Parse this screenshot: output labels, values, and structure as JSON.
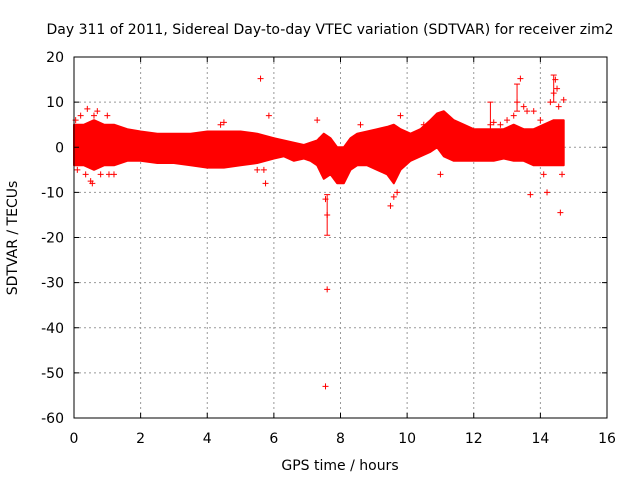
{
  "chart_data": {
    "type": "scatter",
    "title": "Day 311 of 2011, Sidereal Day-to-day VTEC variation (SDTVAR) for receiver zim2",
    "xlabel": "GPS time / hours",
    "ylabel": "SDTVAR / TECUs",
    "xlim": [
      0,
      16
    ],
    "ylim": [
      -60,
      20
    ],
    "xticks": [
      "0",
      "2",
      "4",
      "6",
      "8",
      "10",
      "12",
      "14",
      "16"
    ],
    "yticks": [
      "20",
      "10",
      "0",
      "-10",
      "-20",
      "-30",
      "-40",
      "-50",
      "-60"
    ],
    "grid": true,
    "series_color": "#ff0000",
    "band": {
      "x": [
        0.0,
        0.3,
        0.6,
        0.9,
        1.2,
        1.6,
        2.0,
        2.5,
        3.0,
        3.5,
        4.0,
        4.5,
        5.0,
        5.5,
        6.0,
        6.3,
        6.6,
        6.9,
        7.1,
        7.3,
        7.5,
        7.7,
        7.9,
        8.1,
        8.3,
        8.5,
        8.8,
        9.1,
        9.4,
        9.6,
        9.8,
        10.1,
        10.4,
        10.7,
        10.9,
        11.1,
        11.4,
        11.7,
        12.0,
        12.3,
        12.6,
        12.9,
        13.2,
        13.5,
        13.8,
        14.1,
        14.4,
        14.7
      ],
      "upper": [
        5,
        5,
        6,
        5,
        5,
        4,
        3.5,
        3,
        3,
        3,
        3.5,
        3.5,
        3.5,
        3,
        2,
        1.5,
        1,
        0.5,
        1,
        1.5,
        3,
        2,
        0,
        0,
        2,
        3,
        3.5,
        4,
        4.5,
        5,
        4,
        3,
        4,
        6,
        7.5,
        8,
        6,
        5,
        4,
        4,
        4,
        4,
        5,
        4,
        4,
        5,
        6,
        6
      ],
      "lower": [
        -4,
        -4,
        -5,
        -4,
        -4,
        -3,
        -3,
        -3.5,
        -3.5,
        -4,
        -4.5,
        -4.5,
        -4,
        -3.5,
        -2.5,
        -2,
        -3,
        -2.5,
        -3,
        -4,
        -7,
        -6,
        -8,
        -8,
        -5,
        -4,
        -4,
        -5,
        -6,
        -8,
        -5,
        -3,
        -2,
        -1,
        0,
        -2,
        -3,
        -3,
        -3,
        -3,
        -3,
        -2.5,
        -3,
        -3,
        -4,
        -4,
        -4,
        -4
      ]
    },
    "points": [
      [
        0.05,
        6
      ],
      [
        0.1,
        -5
      ],
      [
        0.2,
        7
      ],
      [
        0.35,
        -6
      ],
      [
        0.4,
        8.5
      ],
      [
        0.5,
        -7.5
      ],
      [
        0.55,
        -8
      ],
      [
        0.6,
        7
      ],
      [
        0.7,
        8
      ],
      [
        0.8,
        -6
      ],
      [
        1.0,
        7
      ],
      [
        1.05,
        -6
      ],
      [
        1.2,
        -6
      ],
      [
        4.4,
        5
      ],
      [
        4.5,
        5.5
      ],
      [
        5.5,
        -5
      ],
      [
        5.6,
        15.2
      ],
      [
        5.7,
        -5
      ],
      [
        5.75,
        -8
      ],
      [
        5.85,
        7
      ],
      [
        7.3,
        6
      ],
      [
        7.35,
        1.5
      ],
      [
        7.4,
        -3
      ],
      [
        7.5,
        -6
      ],
      [
        7.55,
        -11.5
      ],
      [
        7.6,
        -15
      ],
      [
        7.6,
        -31.5
      ],
      [
        7.55,
        -53
      ],
      [
        8.6,
        5
      ],
      [
        9.5,
        -13
      ],
      [
        9.6,
        -11
      ],
      [
        9.7,
        -10
      ],
      [
        9.8,
        7
      ],
      [
        10.5,
        5
      ],
      [
        11.0,
        -6
      ],
      [
        12.5,
        5
      ],
      [
        12.6,
        5.5
      ],
      [
        12.8,
        5
      ],
      [
        13.0,
        6
      ],
      [
        13.2,
        7
      ],
      [
        13.3,
        10
      ],
      [
        13.4,
        15.2
      ],
      [
        13.5,
        9
      ],
      [
        13.6,
        8
      ],
      [
        13.7,
        -10.5
      ],
      [
        13.8,
        8
      ],
      [
        14.0,
        6
      ],
      [
        14.1,
        -6
      ],
      [
        14.2,
        -10
      ],
      [
        14.3,
        10
      ],
      [
        14.4,
        12
      ],
      [
        14.45,
        15
      ],
      [
        14.5,
        13
      ],
      [
        14.55,
        9
      ],
      [
        14.6,
        -14.5
      ],
      [
        14.65,
        -6
      ],
      [
        14.7,
        10.5
      ]
    ],
    "error_bars": [
      [
        7.6,
        -15,
        4.5
      ],
      [
        12.5,
        7,
        3
      ],
      [
        13.3,
        11,
        3
      ],
      [
        14.4,
        13,
        3
      ]
    ]
  }
}
